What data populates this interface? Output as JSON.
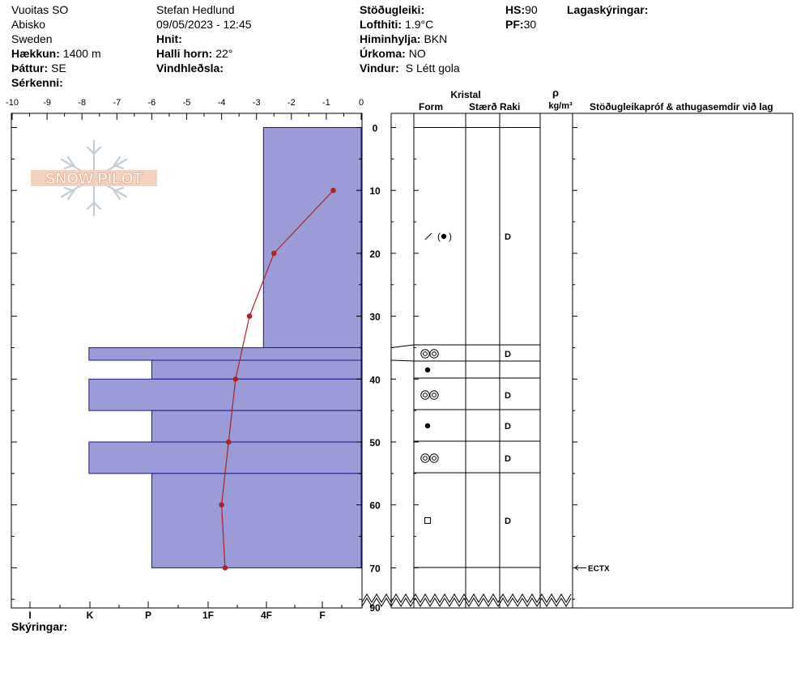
{
  "header": {
    "location": "Vuoitas SO",
    "area": "Abisko",
    "country": "Sweden",
    "elevation_label": "Hækkun:",
    "elevation_value": "1400 m",
    "aspect_label": "Þáttur:",
    "aspect_value": "SE",
    "specifics_label": "Sérkenni:",
    "observer": "Stefan Hedlund",
    "datetime": "09/05/2023 - 12:45",
    "coords_label": "Hnit:",
    "slope_label": "Halli horn:",
    "slope_value": "22°",
    "wind_loading_label": "Vindhleðsla:",
    "stability_label": "Stöðugleiki:",
    "air_temp_label": "Lofthiti:",
    "air_temp_value": "1.9°C",
    "sky_label": "Himinhylja:",
    "sky_value": "BKN",
    "precip_label": "Úrkoma:",
    "precip_value": "NO",
    "wind_label": "Vindur:",
    "wind_value": "S Létt gola",
    "hs_label": "HS:",
    "hs_value": "90",
    "pf_label": "PF:",
    "pf_value": "30",
    "layer_notes_label": "Lagaskýringar:",
    "legend_label": "Skýringar:"
  },
  "logo_text": "SNOW PILOT",
  "columns": {
    "crystal": "Kristal",
    "form": "Form",
    "size": "Stærð",
    "moisture": "Raki",
    "density_symbol": "ρ",
    "density_unit": "kg/m³",
    "stability_notes": "Stöðugleikapróf & athugasemdir við lag"
  },
  "chart_data": {
    "type": "snow-profile",
    "depth_axis": {
      "range": [
        0,
        90
      ],
      "ticks": [
        0,
        10,
        20,
        30,
        40,
        50,
        60,
        70,
        90
      ],
      "direction": "down"
    },
    "temperature_axis": {
      "range": [
        -10,
        0
      ],
      "ticks": [
        -10,
        -9,
        -8,
        -7,
        -6,
        -5,
        -4,
        -3,
        -2,
        -1,
        0
      ]
    },
    "hardness_axis": {
      "labels": [
        "I",
        "K",
        "P",
        "1F",
        "4F",
        "F"
      ]
    },
    "hardness_layers": [
      {
        "top": 0,
        "bottom": 35,
        "temp_left": -2.8
      },
      {
        "top": 35,
        "bottom": 37,
        "temp_left": -7.8
      },
      {
        "top": 37,
        "bottom": 40,
        "temp_left": -6.0
      },
      {
        "top": 40,
        "bottom": 45,
        "temp_left": -7.8
      },
      {
        "top": 45,
        "bottom": 50,
        "temp_left": -6.0
      },
      {
        "top": 50,
        "bottom": 55,
        "temp_left": -7.8
      },
      {
        "top": 55,
        "bottom": 70,
        "temp_left": -6.0
      }
    ],
    "temperature_profile": [
      {
        "depth": 10,
        "temp": -0.8
      },
      {
        "depth": 20,
        "temp": -2.5
      },
      {
        "depth": 30,
        "temp": -3.2
      },
      {
        "depth": 40,
        "temp": -3.6
      },
      {
        "depth": 50,
        "temp": -3.8
      },
      {
        "depth": 60,
        "temp": -4.0
      },
      {
        "depth": 70,
        "temp": -3.9
      }
    ],
    "layers": [
      {
        "top": 0,
        "bottom": 35,
        "form_icon": "decomposing-fragments-and-rounded-grains",
        "moisture": "D"
      },
      {
        "top": 35,
        "bottom": 37,
        "form_icon": "melt-forms",
        "moisture": "D"
      },
      {
        "top": 37,
        "bottom": 40,
        "form_icon": "rounded-grains",
        "moisture": ""
      },
      {
        "top": 40,
        "bottom": 45,
        "form_icon": "melt-forms",
        "moisture": "D"
      },
      {
        "top": 45,
        "bottom": 50,
        "form_icon": "rounded-grains",
        "moisture": "D"
      },
      {
        "top": 50,
        "bottom": 55,
        "form_icon": "melt-forms",
        "moisture": "D"
      },
      {
        "top": 55,
        "bottom": 70,
        "form_icon": "faceted-crystals",
        "moisture": "D"
      }
    ],
    "stability_tests": [
      {
        "depth": 70,
        "label": "ECTX"
      }
    ],
    "colors": {
      "hardness_fill": "#9b9bd7",
      "temperature": "#b22222"
    }
  }
}
